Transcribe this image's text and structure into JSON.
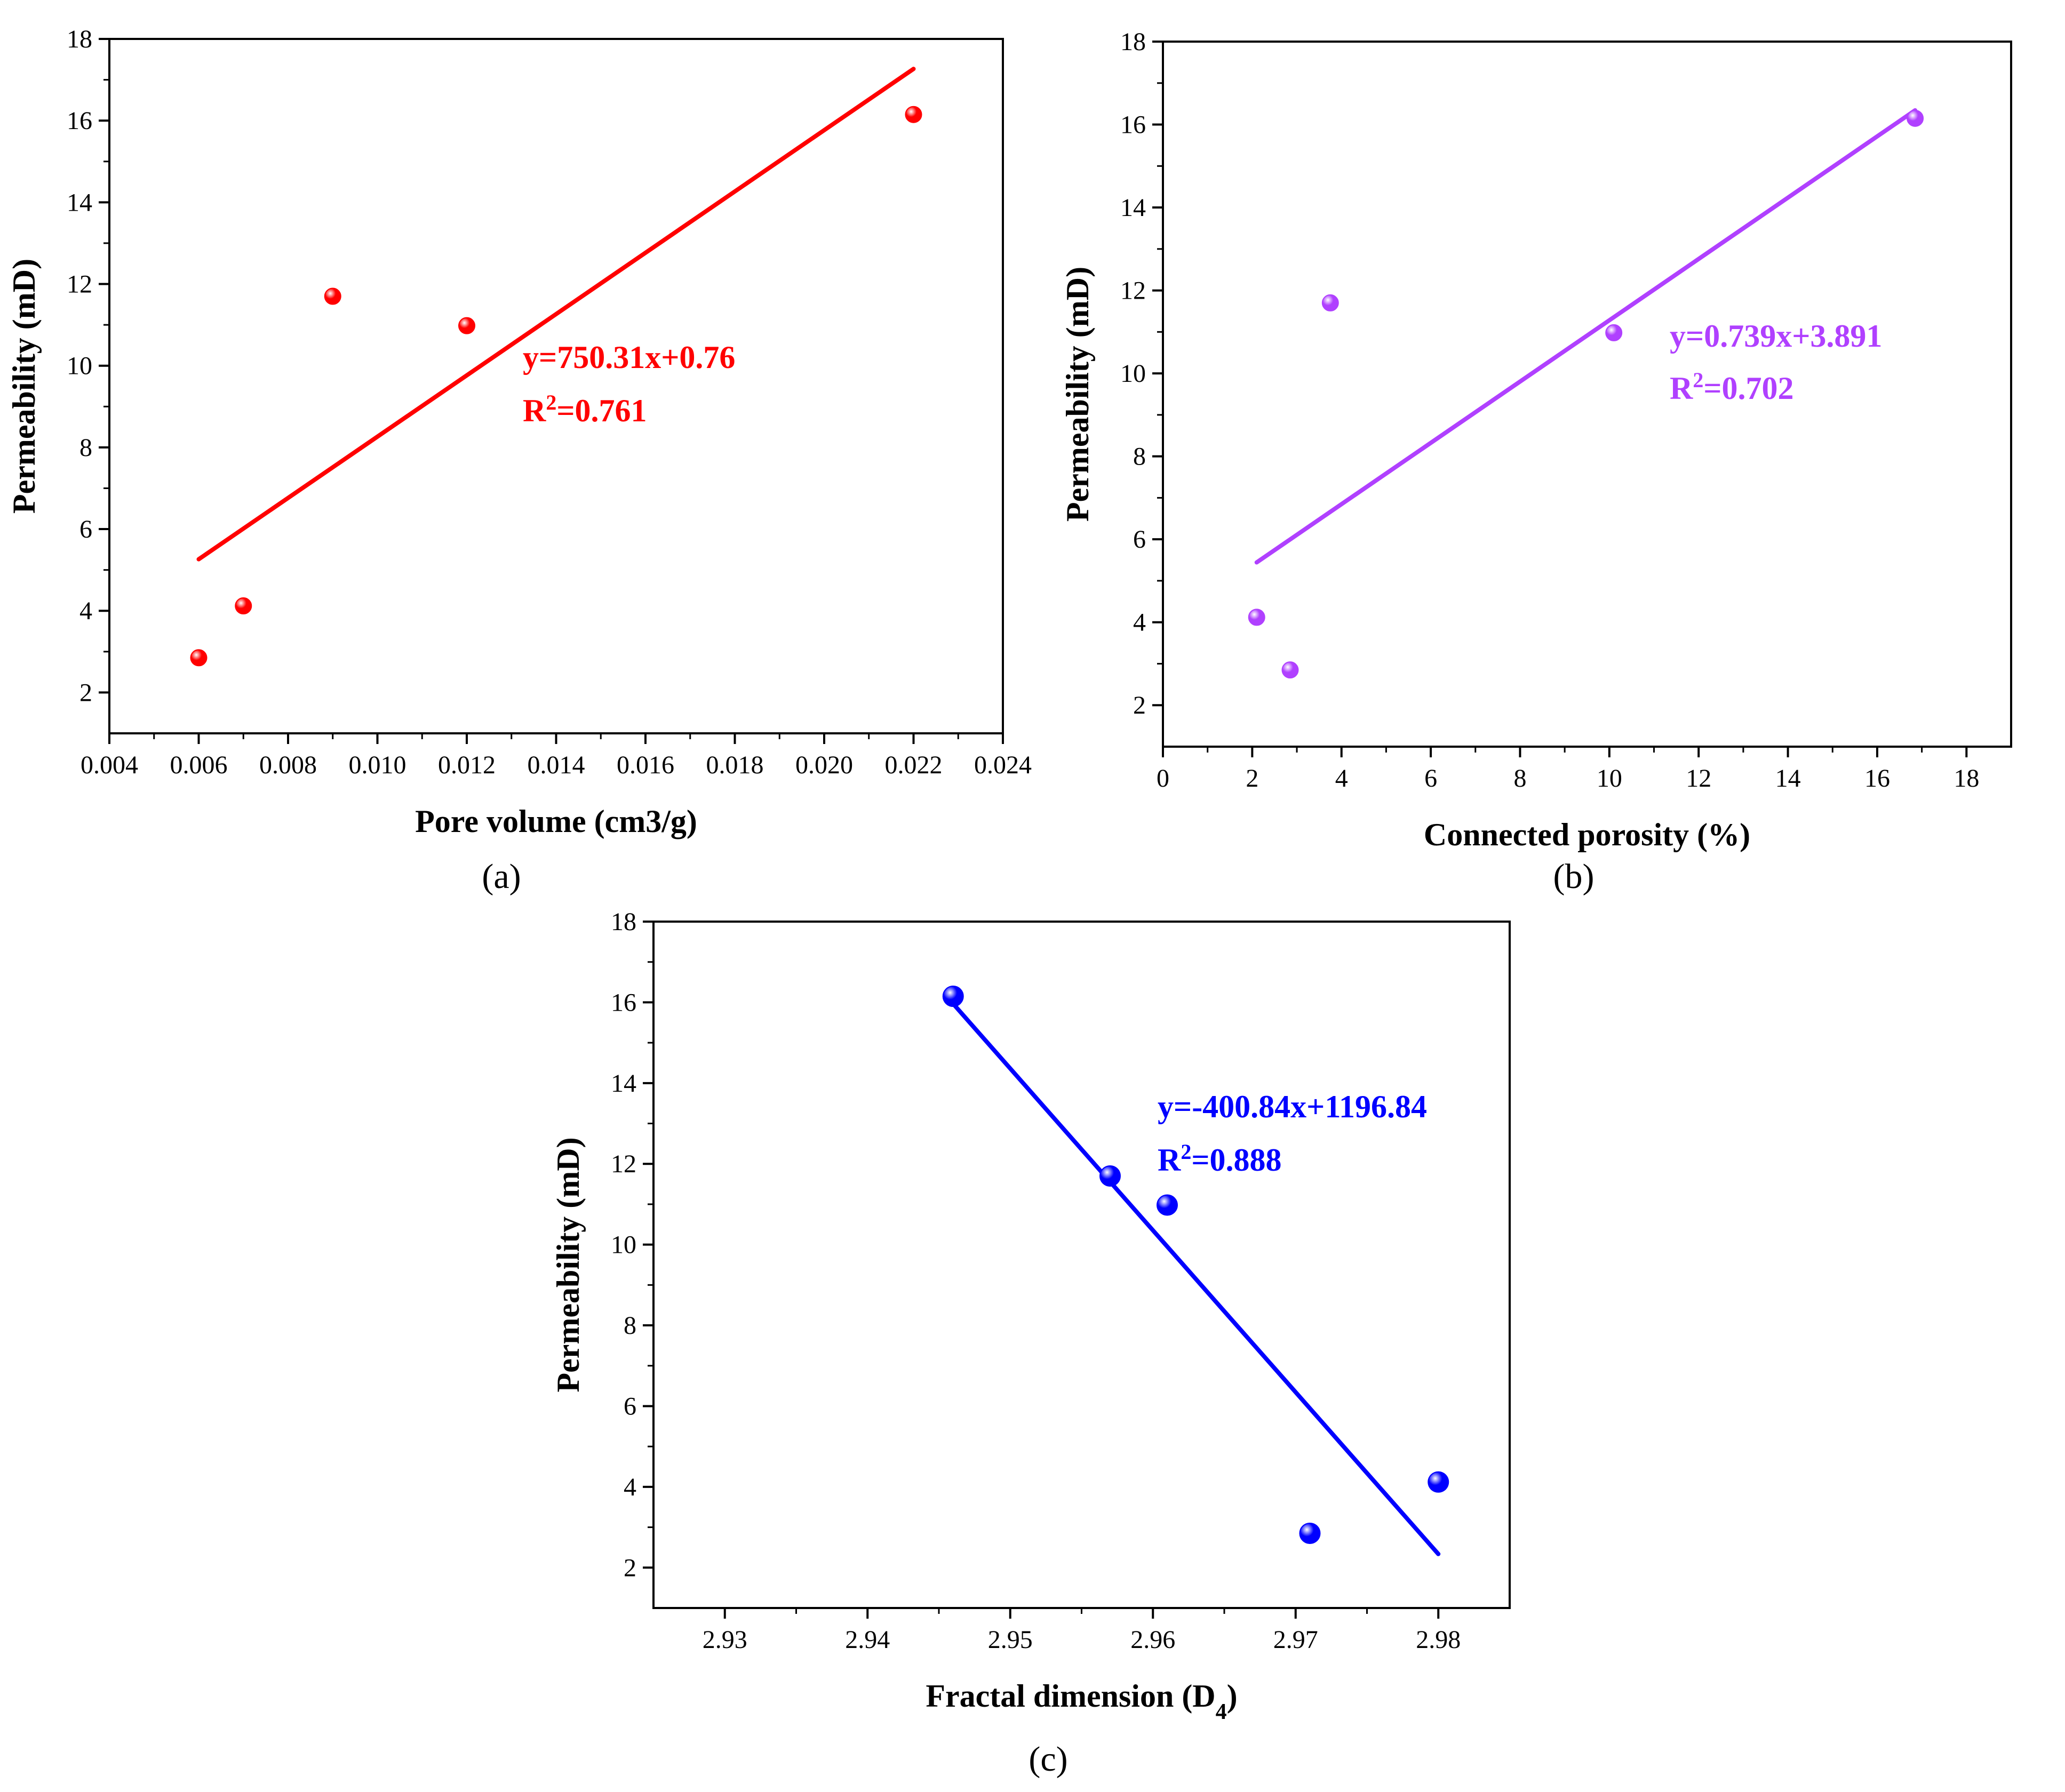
{
  "chart_data": [
    {
      "id": "a",
      "type": "scatter",
      "panel_label": "(a)",
      "xlabel": "Pore volume (cm3/g)",
      "ylabel": "Permeability (mD)",
      "xlim": [
        0.004,
        0.024
      ],
      "ylim": [
        1,
        18
      ],
      "xticks": [
        "0.004",
        "0.006",
        "0.008",
        "0.010",
        "0.012",
        "0.014",
        "0.016",
        "0.018",
        "0.020",
        "0.022",
        "0.024"
      ],
      "yticks": [
        "2",
        "4",
        "6",
        "8",
        "10",
        "12",
        "14",
        "16",
        "18"
      ],
      "color": "#ff0000",
      "points": [
        {
          "x": 0.006,
          "y": 2.85
        },
        {
          "x": 0.007,
          "y": 4.12
        },
        {
          "x": 0.009,
          "y": 11.7
        },
        {
          "x": 0.012,
          "y": 10.98
        },
        {
          "x": 0.022,
          "y": 16.15
        }
      ],
      "fit": {
        "x": [
          0.006,
          0.022
        ],
        "slope": 750.31,
        "intercept": 0.76
      },
      "equation": "y=750.31x+0.76",
      "r2_prefix": "R",
      "r2_sup": "2",
      "r2_value": "=0.761"
    },
    {
      "id": "b",
      "type": "scatter",
      "panel_label": "(b)",
      "xlabel": "Connected porosity (%)",
      "ylabel": "Permeability (mD)",
      "xlim": [
        0,
        19
      ],
      "ylim": [
        1,
        18
      ],
      "xticks": [
        "0",
        "2",
        "4",
        "6",
        "8",
        "10",
        "12",
        "14",
        "16",
        "18"
      ],
      "yticks": [
        "2",
        "4",
        "6",
        "8",
        "10",
        "12",
        "14",
        "16",
        "18"
      ],
      "color": "#b040ff",
      "points": [
        {
          "x": 2.1,
          "y": 4.12
        },
        {
          "x": 2.85,
          "y": 2.85
        },
        {
          "x": 3.75,
          "y": 11.7
        },
        {
          "x": 10.1,
          "y": 10.98
        },
        {
          "x": 16.85,
          "y": 16.15
        }
      ],
      "fit": {
        "x": [
          2.1,
          16.85
        ],
        "slope": 0.739,
        "intercept": 3.891
      },
      "equation": "y=0.739x+3.891",
      "r2_prefix": "R",
      "r2_sup": "2",
      "r2_value": "=0.702"
    },
    {
      "id": "c",
      "type": "scatter",
      "panel_label": "(c)",
      "xlabel": "Fractal dimension (D",
      "xlabel_sub": "4",
      "xlabel_end": ")",
      "ylabel": "Permeability (mD)",
      "xlim": [
        2.925,
        2.985
      ],
      "ylim": [
        1,
        18
      ],
      "xticks": [
        "2.93",
        "2.94",
        "2.95",
        "2.96",
        "2.97",
        "2.98"
      ],
      "yticks": [
        "2",
        "4",
        "6",
        "8",
        "10",
        "12",
        "14",
        "16",
        "18"
      ],
      "color": "#0000ff",
      "points": [
        {
          "x": 2.946,
          "y": 16.15
        },
        {
          "x": 2.957,
          "y": 11.7
        },
        {
          "x": 2.961,
          "y": 10.98
        },
        {
          "x": 2.971,
          "y": 2.85
        },
        {
          "x": 2.98,
          "y": 4.12
        }
      ],
      "fit": {
        "x": [
          2.946,
          2.98
        ],
        "slope": -400.84,
        "intercept": 1196.84
      },
      "equation": "y=-400.84x+1196.84",
      "r2_prefix": "R",
      "r2_sup": "2",
      "r2_value": "=0.888"
    }
  ]
}
